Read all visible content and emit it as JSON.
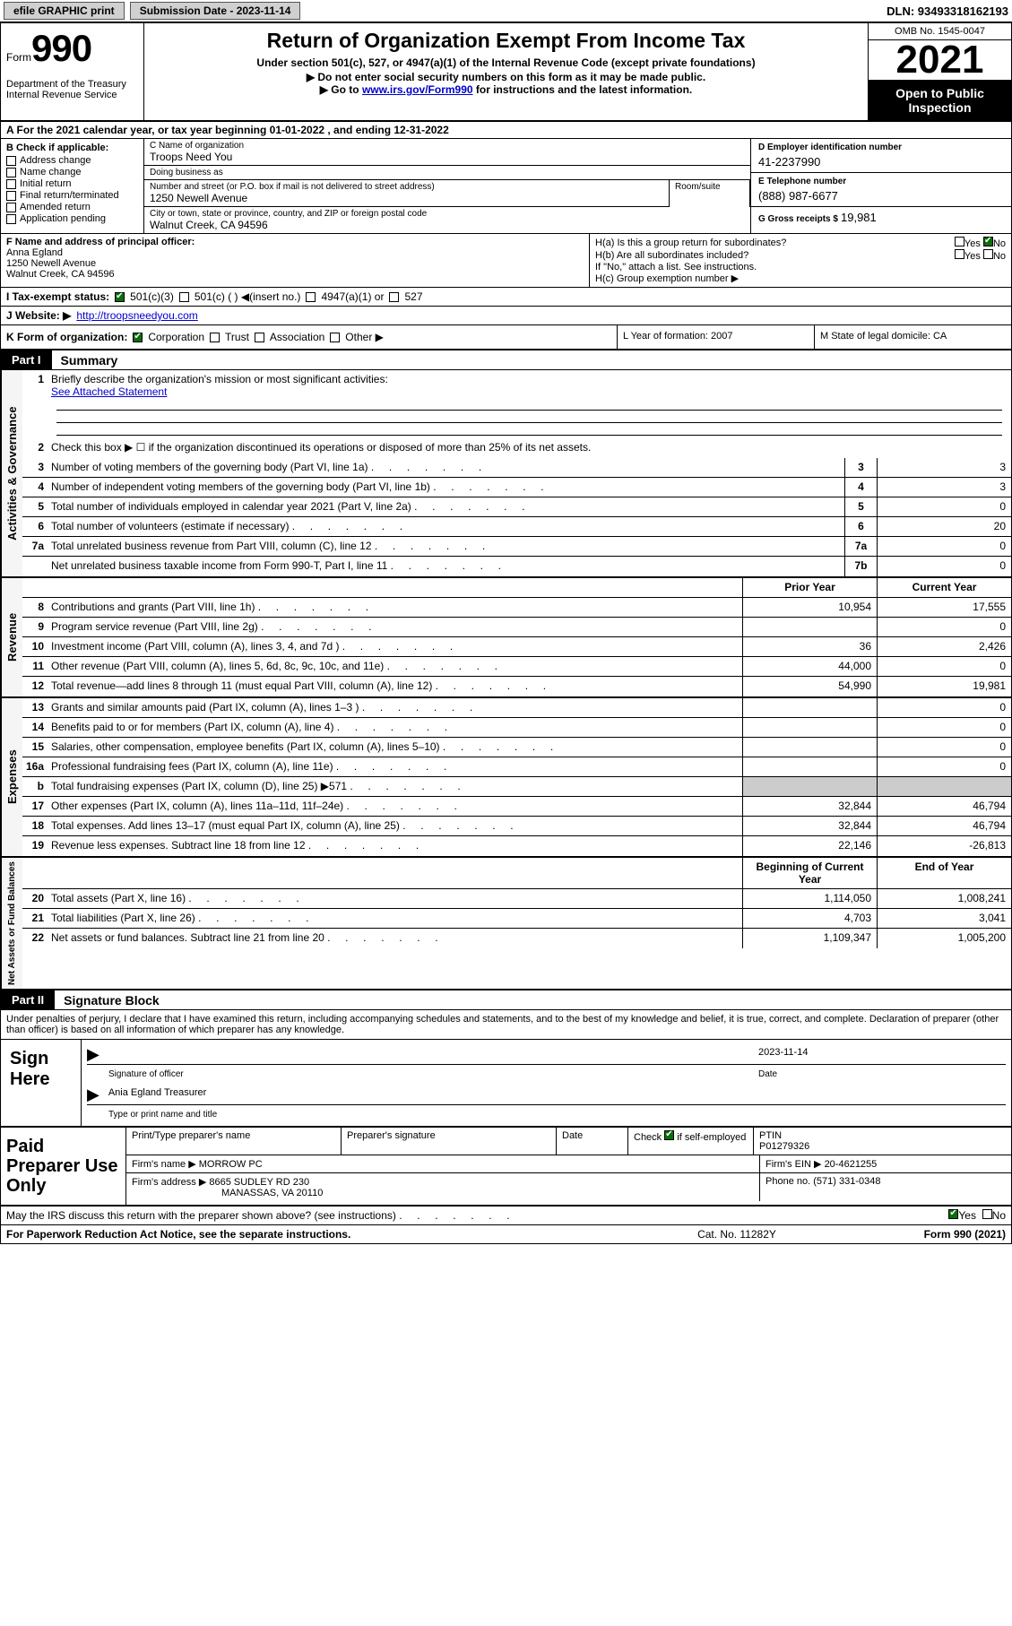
{
  "topbar": {
    "efile": "efile GRAPHIC print",
    "submission_label": "Submission Date - 2023-11-14",
    "dln": "DLN: 93493318162193"
  },
  "header": {
    "form_label": "Form",
    "form_number": "990",
    "dept": "Department of the Treasury\nInternal Revenue Service",
    "title": "Return of Organization Exempt From Income Tax",
    "subtitle": "Under section 501(c), 527, or 4947(a)(1) of the Internal Revenue Code (except private foundations)",
    "note1": "▶ Do not enter social security numbers on this form as it may be made public.",
    "note2_pre": "▶ Go to ",
    "note2_link": "www.irs.gov/Form990",
    "note2_post": " for instructions and the latest information.",
    "omb": "OMB No. 1545-0047",
    "year": "2021",
    "open": "Open to Public Inspection"
  },
  "row_a": "A For the 2021 calendar year, or tax year beginning 01-01-2022   , and ending 12-31-2022",
  "col_b": {
    "header": "B Check if applicable:",
    "items": [
      "Address change",
      "Name change",
      "Initial return",
      "Final return/terminated",
      "Amended return",
      "Application pending"
    ]
  },
  "col_c": {
    "name_label": "C Name of organization",
    "name": "Troops Need You",
    "dba_label": "Doing business as",
    "dba": "",
    "addr_label": "Number and street (or P.O. box if mail is not delivered to street address)",
    "room_label": "Room/suite",
    "addr": "1250 Newell Avenue",
    "city_label": "City or town, state or province, country, and ZIP or foreign postal code",
    "city": "Walnut Creek, CA  94596"
  },
  "col_d": {
    "label": "D Employer identification number",
    "val": "41-2237990"
  },
  "col_e": {
    "label": "E Telephone number",
    "val": "(888) 987-6677"
  },
  "col_g": {
    "label": "G Gross receipts $",
    "val": "19,981"
  },
  "row_f": {
    "label": "F  Name and address of principal officer:",
    "name": "Anna Egland",
    "addr1": "1250 Newell Avenue",
    "addr2": "Walnut Creek, CA  94596"
  },
  "row_h": {
    "ha": "H(a)  Is this a group return for subordinates?",
    "hb": "H(b)  Are all subordinates included?",
    "hb_note": "If \"No,\" attach a list. See instructions.",
    "hc": "H(c)  Group exemption number ▶",
    "yes": "Yes",
    "no": "No"
  },
  "row_i": {
    "label": "I   Tax-exempt status:",
    "o1": "501(c)(3)",
    "o2": "501(c) (  ) ◀(insert no.)",
    "o3": "4947(a)(1) or",
    "o4": "527"
  },
  "row_j": {
    "label": "J   Website: ▶",
    "val": "http://troopsneedyou.com"
  },
  "row_k": {
    "label": "K Form of organization:",
    "o1": "Corporation",
    "o2": "Trust",
    "o3": "Association",
    "o4": "Other ▶",
    "l": "L Year of formation: 2007",
    "m": "M State of legal domicile: CA"
  },
  "part1": {
    "num": "Part I",
    "title": "Summary"
  },
  "summary": {
    "q1": "Briefly describe the organization's mission or most significant activities:",
    "q1_val": "See Attached Statement",
    "q2": "Check this box ▶ ☐  if the organization discontinued its operations or disposed of more than 25% of its net assets.",
    "rows_gov": [
      {
        "n": "3",
        "t": "Number of voting members of the governing body (Part VI, line 1a)",
        "box": "3",
        "v": "3"
      },
      {
        "n": "4",
        "t": "Number of independent voting members of the governing body (Part VI, line 1b)",
        "box": "4",
        "v": "3"
      },
      {
        "n": "5",
        "t": "Total number of individuals employed in calendar year 2021 (Part V, line 2a)",
        "box": "5",
        "v": "0"
      },
      {
        "n": "6",
        "t": "Total number of volunteers (estimate if necessary)",
        "box": "6",
        "v": "20"
      },
      {
        "n": "7a",
        "t": "Total unrelated business revenue from Part VIII, column (C), line 12",
        "box": "7a",
        "v": "0"
      },
      {
        "n": "",
        "t": "Net unrelated business taxable income from Form 990-T, Part I, line 11",
        "box": "7b",
        "v": "0"
      }
    ],
    "hdr_prior": "Prior Year",
    "hdr_curr": "Current Year",
    "rows_rev": [
      {
        "n": "8",
        "t": "Contributions and grants (Part VIII, line 1h)",
        "p": "10,954",
        "c": "17,555"
      },
      {
        "n": "9",
        "t": "Program service revenue (Part VIII, line 2g)",
        "p": "",
        "c": "0"
      },
      {
        "n": "10",
        "t": "Investment income (Part VIII, column (A), lines 3, 4, and 7d )",
        "p": "36",
        "c": "2,426"
      },
      {
        "n": "11",
        "t": "Other revenue (Part VIII, column (A), lines 5, 6d, 8c, 9c, 10c, and 11e)",
        "p": "44,000",
        "c": "0"
      },
      {
        "n": "12",
        "t": "Total revenue—add lines 8 through 11 (must equal Part VIII, column (A), line 12)",
        "p": "54,990",
        "c": "19,981"
      }
    ],
    "rows_exp": [
      {
        "n": "13",
        "t": "Grants and similar amounts paid (Part IX, column (A), lines 1–3 )",
        "p": "",
        "c": "0"
      },
      {
        "n": "14",
        "t": "Benefits paid to or for members (Part IX, column (A), line 4)",
        "p": "",
        "c": "0"
      },
      {
        "n": "15",
        "t": "Salaries, other compensation, employee benefits (Part IX, column (A), lines 5–10)",
        "p": "",
        "c": "0"
      },
      {
        "n": "16a",
        "t": "Professional fundraising fees (Part IX, column (A), line 11e)",
        "p": "",
        "c": "0"
      },
      {
        "n": "b",
        "t": "Total fundraising expenses (Part IX, column (D), line 25) ▶571",
        "p": "shade",
        "c": "shade"
      },
      {
        "n": "17",
        "t": "Other expenses (Part IX, column (A), lines 11a–11d, 11f–24e)",
        "p": "32,844",
        "c": "46,794"
      },
      {
        "n": "18",
        "t": "Total expenses. Add lines 13–17 (must equal Part IX, column (A), line 25)",
        "p": "32,844",
        "c": "46,794"
      },
      {
        "n": "19",
        "t": "Revenue less expenses. Subtract line 18 from line 12",
        "p": "22,146",
        "c": "-26,813"
      }
    ],
    "hdr_boyr": "Beginning of Current Year",
    "hdr_eoyr": "End of Year",
    "rows_na": [
      {
        "n": "20",
        "t": "Total assets (Part X, line 16)",
        "p": "1,114,050",
        "c": "1,008,241"
      },
      {
        "n": "21",
        "t": "Total liabilities (Part X, line 26)",
        "p": "4,703",
        "c": "3,041"
      },
      {
        "n": "22",
        "t": "Net assets or fund balances. Subtract line 21 from line 20",
        "p": "1,109,347",
        "c": "1,005,200"
      }
    ]
  },
  "part2": {
    "num": "Part II",
    "title": "Signature Block"
  },
  "sig": {
    "decl": "Under penalties of perjury, I declare that I have examined this return, including accompanying schedules and statements, and to the best of my knowledge and belief, it is true, correct, and complete. Declaration of preparer (other than officer) is based on all information of which preparer has any knowledge.",
    "sign_here": "Sign Here",
    "sig_of_officer": "Signature of officer",
    "date": "2023-11-14",
    "date_lbl": "Date",
    "name_title": "Ania Egland  Treasurer",
    "name_title_lbl": "Type or print name and title"
  },
  "prep": {
    "label": "Paid Preparer Use Only",
    "h1": "Print/Type preparer's name",
    "h2": "Preparer's signature",
    "h3": "Date",
    "h4_pre": "Check",
    "h4_post": "if self-employed",
    "h5": "PTIN",
    "ptin": "P01279326",
    "firm_lbl": "Firm's name   ▶",
    "firm": "MORROW PC",
    "ein_lbl": "Firm's EIN ▶",
    "ein": "20-4621255",
    "addr_lbl": "Firm's address ▶",
    "addr1": "8665 SUDLEY RD 230",
    "addr2": "MANASSAS, VA  20110",
    "phone_lbl": "Phone no.",
    "phone": "(571) 331-0348"
  },
  "bottom": {
    "q": "May the IRS discuss this return with the preparer shown above? (see instructions)",
    "yes": "Yes",
    "no": "No"
  },
  "footer": {
    "l": "For Paperwork Reduction Act Notice, see the separate instructions.",
    "m": "Cat. No. 11282Y",
    "r": "Form 990 (2021)"
  }
}
